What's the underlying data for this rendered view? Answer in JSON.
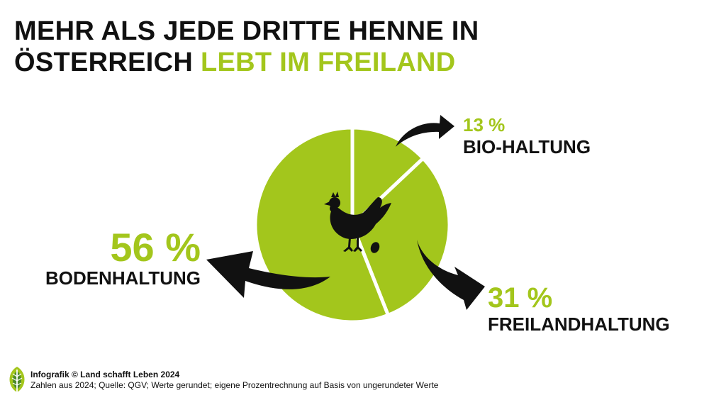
{
  "title": {
    "line1": "MEHR ALS JEDE DRITTE HENNE IN",
    "line2_black": "ÖSTERREICH ",
    "line2_green": "LEBT IM FREILAND"
  },
  "colors": {
    "accent": "#a3c61c",
    "text": "#111111",
    "background": "#ffffff"
  },
  "chart_data": {
    "type": "pie",
    "slices": [
      {
        "value": 13,
        "value_label": "13 %",
        "category": "BIO-HALTUNG"
      },
      {
        "value": 31,
        "value_label": "31 %",
        "category": "FREILANDHALTUNG"
      },
      {
        "value": 56,
        "value_label": "56 %",
        "category": "BODENHALTUNG"
      }
    ],
    "center_icon": "hen-with-egg-icon"
  },
  "footer": {
    "credit": "Infografik © Land schafft Leben 2024",
    "source": "Zahlen aus 2024; Quelle: QGV; Werte gerundet; eigene Prozentrechnung auf Basis von ungerundeter Werte"
  },
  "logo_icon": "leaf-logo-icon"
}
